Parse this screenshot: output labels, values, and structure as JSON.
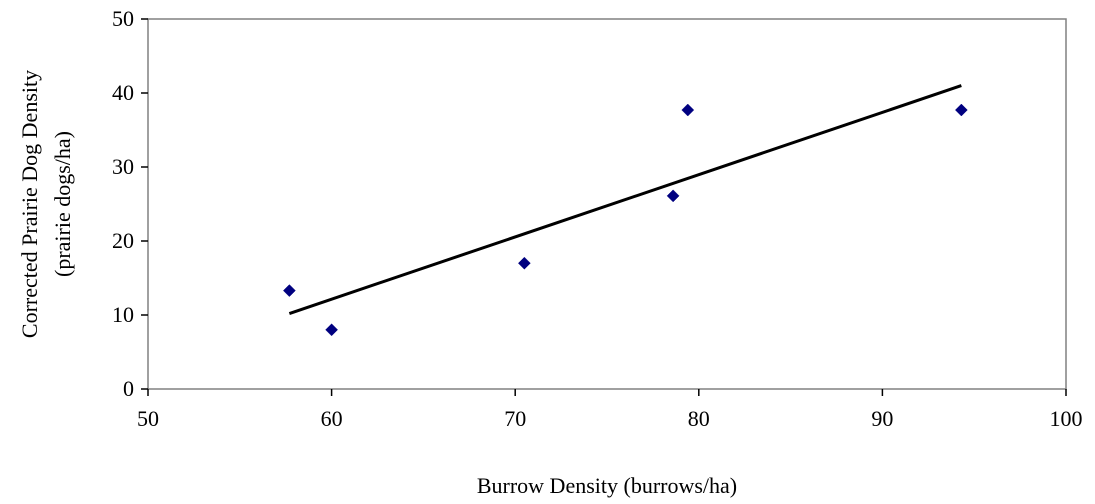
{
  "chart_data": {
    "type": "scatter",
    "xlabel": "Burrow Density (burrows/ha)",
    "ylabel_lines": [
      "Corrected Prairie Dog Density",
      "(prairie dogs/ha)"
    ],
    "xlim": [
      50,
      100
    ],
    "ylim": [
      0,
      50
    ],
    "x_ticks": [
      "50",
      "60",
      "70",
      "80",
      "90",
      "100"
    ],
    "y_ticks": [
      "0",
      "10",
      "20",
      "30",
      "40",
      "50"
    ],
    "grid": false,
    "legend": "none",
    "marker_color": "#000080",
    "line_color": "#000000",
    "points": [
      {
        "x": 57.7,
        "y": 13.3
      },
      {
        "x": 60.0,
        "y": 8.0
      },
      {
        "x": 70.5,
        "y": 17.0
      },
      {
        "x": 78.6,
        "y": 26.1
      },
      {
        "x": 79.4,
        "y": 37.7
      },
      {
        "x": 94.3,
        "y": 37.7
      }
    ],
    "trendline": {
      "x": [
        57.7,
        94.3
      ],
      "y": [
        10.2,
        41.0
      ]
    }
  }
}
